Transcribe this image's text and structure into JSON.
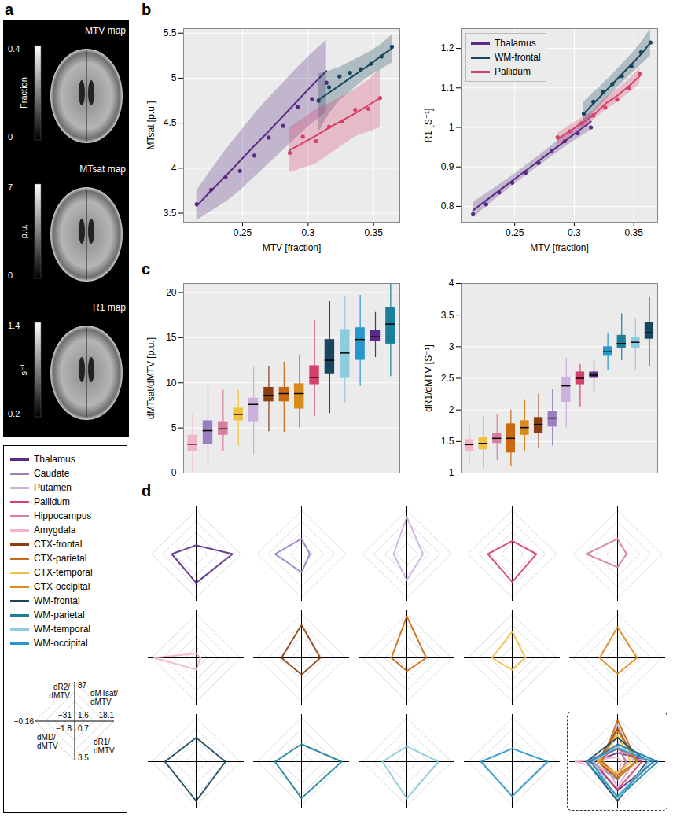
{
  "panel_letters": [
    "a",
    "b",
    "c",
    "d"
  ],
  "maps": [
    {
      "title": "MTV map",
      "unit": "Fraction",
      "min": 0,
      "max": 0.4
    },
    {
      "title": "MTsat map",
      "unit": "p.u.",
      "min": 0,
      "max": 7
    },
    {
      "title": "R1 map",
      "unit": "s⁻¹",
      "min": 0.2,
      "max": 1.4
    }
  ],
  "regions": [
    {
      "name": "Thalamus",
      "color": "#5b2a86"
    },
    {
      "name": "Caudate",
      "color": "#9a7fc0"
    },
    {
      "name": "Putamen",
      "color": "#cdb0dd"
    },
    {
      "name": "Pallidum",
      "color": "#d6416b"
    },
    {
      "name": "Hippocampus",
      "color": "#d77ea0"
    },
    {
      "name": "Amygdala",
      "color": "#f3b3c8"
    },
    {
      "name": "CTX-frontal",
      "color": "#8a3f12"
    },
    {
      "name": "CTX-parietal",
      "color": "#c96a12"
    },
    {
      "name": "CTX-temporal",
      "color": "#f2c040"
    },
    {
      "name": "CTX-occipital",
      "color": "#d98a1c"
    },
    {
      "name": "WM-frontal",
      "color": "#17475e"
    },
    {
      "name": "WM-parietal",
      "color": "#1b7f9c"
    },
    {
      "name": "WM-temporal",
      "color": "#8ccbe0"
    },
    {
      "name": "WM-occipital",
      "color": "#2896cc"
    }
  ],
  "chart_data": [
    {
      "type": "line",
      "xlabel": "MTV [fraction]",
      "ylabel": "MTsat [p.u.]",
      "xlim": [
        0.205,
        0.37
      ],
      "xticks": [
        0.25,
        0.3,
        0.35
      ],
      "ylim": [
        3.4,
        5.55
      ],
      "yticks": [
        3.5,
        4,
        4.5,
        5,
        5.5
      ],
      "grid": true,
      "series": [
        {
          "name": "Thalamus",
          "color": "#5b2a86",
          "marker": "circle",
          "x": [
            0.215,
            0.226,
            0.237,
            0.248,
            0.259,
            0.27,
            0.281,
            0.292,
            0.303,
            0.314
          ],
          "values": [
            3.6,
            3.76,
            3.9,
            3.97,
            4.14,
            4.34,
            4.47,
            4.68,
            4.77,
            4.95
          ],
          "fit": [
            3.58,
            3.75,
            3.91,
            4.08,
            4.25,
            4.41,
            4.58,
            4.75,
            4.92,
            5.08
          ],
          "lower": [
            3.42,
            3.52,
            3.62,
            3.75,
            3.9,
            4.05,
            4.2,
            4.35,
            4.5,
            4.62
          ],
          "upper": [
            3.75,
            3.98,
            4.2,
            4.4,
            4.6,
            4.78,
            4.95,
            5.12,
            5.28,
            5.42
          ]
        },
        {
          "name": "WM-frontal",
          "color": "#17475e",
          "marker": "circle",
          "x": [
            0.308,
            0.316,
            0.324,
            0.332,
            0.34,
            0.348,
            0.356,
            0.364
          ],
          "values": [
            4.75,
            4.9,
            5.02,
            5.06,
            5.1,
            5.16,
            5.24,
            5.35
          ],
          "fit": [
            4.76,
            4.84,
            4.92,
            5.0,
            5.08,
            5.16,
            5.25,
            5.33
          ],
          "lower": [
            4.4,
            4.6,
            4.75,
            4.85,
            4.95,
            5.03,
            5.1,
            5.17
          ],
          "upper": [
            5.05,
            5.08,
            5.12,
            5.18,
            5.24,
            5.3,
            5.38,
            5.48
          ]
        },
        {
          "name": "Pallidum",
          "color": "#d6416b",
          "marker": "circle",
          "x": [
            0.286,
            0.296,
            0.306,
            0.316,
            0.326,
            0.336,
            0.346,
            0.355
          ],
          "values": [
            4.17,
            4.35,
            4.3,
            4.46,
            4.52,
            4.65,
            4.66,
            4.78
          ],
          "fit": [
            4.2,
            4.28,
            4.36,
            4.45,
            4.53,
            4.61,
            4.7,
            4.78
          ],
          "lower": [
            3.95,
            4.0,
            4.05,
            4.15,
            4.25,
            4.35,
            4.4,
            4.45
          ],
          "upper": [
            4.45,
            4.55,
            4.65,
            4.72,
            4.8,
            4.88,
            4.98,
            5.1
          ]
        }
      ]
    },
    {
      "type": "line",
      "xlabel": "MTV [fraction]",
      "ylabel": "R1 [S⁻¹]",
      "xlim": [
        0.205,
        0.37
      ],
      "xticks": [
        0.25,
        0.3,
        0.35
      ],
      "ylim": [
        0.76,
        1.25
      ],
      "yticks": [
        0.8,
        0.9,
        1,
        1.1,
        1.2
      ],
      "grid": true,
      "legend": "top-left",
      "series": [
        {
          "name": "Thalamus",
          "color": "#5b2a86",
          "marker": "circle",
          "x": [
            0.215,
            0.226,
            0.237,
            0.248,
            0.259,
            0.27,
            0.281,
            0.292,
            0.303,
            0.314
          ],
          "values": [
            0.78,
            0.805,
            0.835,
            0.86,
            0.885,
            0.91,
            0.94,
            0.965,
            0.985,
            1.0
          ],
          "fit": [
            0.79,
            0.815,
            0.84,
            0.865,
            0.89,
            0.915,
            0.94,
            0.965,
            0.99,
            1.015
          ],
          "lower": [
            0.77,
            0.8,
            0.826,
            0.852,
            0.877,
            0.902,
            0.926,
            0.95,
            0.972,
            0.993
          ],
          "upper": [
            0.81,
            0.832,
            0.855,
            0.878,
            0.903,
            0.928,
            0.954,
            0.98,
            1.008,
            1.037
          ]
        },
        {
          "name": "WM-frontal",
          "color": "#17475e",
          "marker": "circle",
          "x": [
            0.308,
            0.316,
            0.324,
            0.332,
            0.34,
            0.348,
            0.356,
            0.364
          ],
          "values": [
            1.035,
            1.065,
            1.09,
            1.11,
            1.13,
            1.155,
            1.19,
            1.215
          ],
          "fit": [
            1.035,
            1.06,
            1.085,
            1.11,
            1.135,
            1.16,
            1.185,
            1.215
          ],
          "lower": [
            1.005,
            1.035,
            1.062,
            1.088,
            1.112,
            1.136,
            1.158,
            1.182
          ],
          "upper": [
            1.065,
            1.088,
            1.11,
            1.134,
            1.16,
            1.186,
            1.214,
            1.25
          ]
        },
        {
          "name": "Pallidum",
          "color": "#d6416b",
          "marker": "circle",
          "x": [
            0.286,
            0.296,
            0.306,
            0.316,
            0.326,
            0.336,
            0.346,
            0.355
          ],
          "values": [
            0.975,
            0.99,
            1.01,
            1.03,
            1.05,
            1.07,
            1.1,
            1.135
          ],
          "fit": [
            0.97,
            0.99,
            1.01,
            1.03,
            1.06,
            1.08,
            1.105,
            1.13
          ],
          "lower": [
            0.955,
            0.976,
            0.997,
            1.018,
            1.044,
            1.064,
            1.087,
            1.11
          ],
          "upper": [
            0.985,
            1.005,
            1.024,
            1.044,
            1.075,
            1.097,
            1.122,
            1.15
          ]
        }
      ]
    },
    {
      "type": "box",
      "ylabel": "dMTsat/dMTV [p.u.]",
      "ylim": [
        0,
        21
      ],
      "yticks": [
        0,
        5,
        10,
        15,
        20
      ],
      "grid": true,
      "tick_labels": "y",
      "categories": [
        "Amygdala",
        "Caudate",
        "Hippocampus",
        "CTX-temporal",
        "Putamen",
        "CTX-frontal",
        "CTX-parietal",
        "CTX-occipital",
        "Pallidum",
        "WM-frontal",
        "WM-temporal",
        "WM-occipital",
        "Thalamus",
        "WM-parietal"
      ],
      "colors": [
        "#f3b3c8",
        "#9a7fc0",
        "#d77ea0",
        "#f2c040",
        "#cdb0dd",
        "#8a3f12",
        "#c96a12",
        "#d98a1c",
        "#d6416b",
        "#17475e",
        "#8ccbe0",
        "#2896cc",
        "#5b2a86",
        "#1b7f9c"
      ],
      "boxes": [
        {
          "min": 0.1,
          "q1": 2.4,
          "median": 3.2,
          "q3": 4.2,
          "max": 6.6
        },
        {
          "min": 0.7,
          "q1": 3.2,
          "median": 4.7,
          "q3": 5.8,
          "max": 9.6
        },
        {
          "min": 2.4,
          "q1": 4.2,
          "median": 4.9,
          "q3": 5.7,
          "max": 9.2
        },
        {
          "min": 3.0,
          "q1": 5.8,
          "median": 6.5,
          "q3": 7.2,
          "max": 9.2
        },
        {
          "min": 2.0,
          "q1": 5.7,
          "median": 7.6,
          "q3": 8.3,
          "max": 11.7
        },
        {
          "min": 4.6,
          "q1": 7.9,
          "median": 8.6,
          "q3": 9.5,
          "max": 11.8
        },
        {
          "min": 4.5,
          "q1": 7.9,
          "median": 8.8,
          "q3": 9.5,
          "max": 12.3
        },
        {
          "min": 5.0,
          "q1": 7.1,
          "median": 8.8,
          "q3": 9.9,
          "max": 13.1
        },
        {
          "min": 6.3,
          "q1": 9.8,
          "median": 10.6,
          "q3": 11.9,
          "max": 16.9
        },
        {
          "min": 6.6,
          "q1": 11.0,
          "median": 12.5,
          "q3": 14.8,
          "max": 19.0
        },
        {
          "min": 7.8,
          "q1": 10.5,
          "median": 13.3,
          "q3": 15.9,
          "max": 19.5
        },
        {
          "min": 9.6,
          "q1": 12.5,
          "median": 14.8,
          "q3": 16.1,
          "max": 19.7
        },
        {
          "min": 12.8,
          "q1": 14.6,
          "median": 15.1,
          "q3": 15.8,
          "max": 17.8
        },
        {
          "min": 10.7,
          "q1": 14.3,
          "median": 16.5,
          "q3": 18.3,
          "max": 21.0
        }
      ]
    },
    {
      "type": "box",
      "ylabel": "dR1/dMTV [S⁻¹]",
      "ylim": [
        1,
        4
      ],
      "yticks": [
        1,
        1.5,
        2,
        2.5,
        3,
        3.5,
        4
      ],
      "grid": true,
      "tick_labels": "y",
      "categories": [
        "Amygdala",
        "CTX-temporal",
        "Hippocampus",
        "CTX-parietal",
        "CTX-occipital",
        "CTX-frontal",
        "Caudate",
        "Putamen",
        "Pallidum",
        "Thalamus",
        "WM-occipital",
        "WM-parietal",
        "WM-temporal",
        "WM-frontal"
      ],
      "colors": [
        "#f3b3c8",
        "#f2c040",
        "#d77ea0",
        "#c96a12",
        "#d98a1c",
        "#8a3f12",
        "#9a7fc0",
        "#cdb0dd",
        "#d6416b",
        "#5b2a86",
        "#2896cc",
        "#1b7f9c",
        "#8ccbe0",
        "#17475e"
      ],
      "boxes": [
        {
          "min": 1.12,
          "q1": 1.35,
          "median": 1.45,
          "q3": 1.53,
          "max": 1.78
        },
        {
          "min": 1.07,
          "q1": 1.37,
          "median": 1.47,
          "q3": 1.56,
          "max": 1.9
        },
        {
          "min": 1.2,
          "q1": 1.47,
          "median": 1.55,
          "q3": 1.63,
          "max": 1.92
        },
        {
          "min": 1.1,
          "q1": 1.32,
          "median": 1.55,
          "q3": 1.78,
          "max": 2.0
        },
        {
          "min": 1.35,
          "q1": 1.6,
          "median": 1.72,
          "q3": 1.83,
          "max": 2.15
        },
        {
          "min": 1.38,
          "q1": 1.63,
          "median": 1.77,
          "q3": 1.88,
          "max": 2.25
        },
        {
          "min": 1.43,
          "q1": 1.73,
          "median": 1.87,
          "q3": 1.98,
          "max": 2.32
        },
        {
          "min": 1.72,
          "q1": 2.12,
          "median": 2.38,
          "q3": 2.52,
          "max": 2.82
        },
        {
          "min": 2.05,
          "q1": 2.4,
          "median": 2.5,
          "q3": 2.6,
          "max": 2.72
        },
        {
          "min": 2.28,
          "q1": 2.5,
          "median": 2.55,
          "q3": 2.6,
          "max": 2.78
        },
        {
          "min": 2.62,
          "q1": 2.85,
          "median": 2.92,
          "q3": 3.0,
          "max": 3.22
        },
        {
          "min": 2.78,
          "q1": 2.98,
          "median": 3.05,
          "q3": 3.18,
          "max": 3.52
        },
        {
          "min": 2.62,
          "q1": 2.98,
          "median": 3.07,
          "q3": 3.14,
          "max": 3.45
        },
        {
          "min": 2.68,
          "q1": 3.12,
          "median": 3.22,
          "q3": 3.38,
          "max": 3.78
        }
      ]
    }
  ],
  "radar": {
    "axes": [
      {
        "label": "dR2/dMTV",
        "min": -31,
        "max": 87
      },
      {
        "label": "dMTsat/dMTV",
        "min": 1.6,
        "max": 18.1
      },
      {
        "label": "dR1/dMTV",
        "min": 0.7,
        "max": 3.5
      },
      {
        "label": "dMD/dMTV",
        "min": -1.8,
        "max": -0.16
      }
    ],
    "regions": [
      {
        "name": "Thalamus",
        "values": [
          -7.4,
          15.1,
          2.55,
          -0.9
        ]
      },
      {
        "name": "Caudate",
        "values": [
          10.3,
          4.7,
          1.87,
          -0.82
        ]
      },
      {
        "name": "Putamen",
        "values": [
          69.3,
          7.6,
          2.38,
          -1.31
        ]
      },
      {
        "name": "Pallidum",
        "values": [
          4.4,
          10.6,
          2.5,
          -0.9
        ]
      },
      {
        "name": "Hippocampus",
        "values": [
          10.3,
          4.9,
          1.55,
          -0.65
        ]
      },
      {
        "name": "Amygdala",
        "values": [
          -19.2,
          3.2,
          1.45,
          -0.24
        ]
      },
      {
        "name": "CTX-frontal",
        "values": [
          57.5,
          8.6,
          1.77,
          -1.06
        ]
      },
      {
        "name": "CTX-parietal",
        "values": [
          81.1,
          8.8,
          1.55,
          -1.23
        ]
      },
      {
        "name": "CTX-temporal",
        "values": [
          39.8,
          6.5,
          1.47,
          -1.06
        ]
      },
      {
        "name": "CTX-occipital",
        "values": [
          51.6,
          8.8,
          1.72,
          -1.14
        ]
      },
      {
        "name": "WM-frontal",
        "values": [
          33.9,
          12.5,
          3.22,
          -0.65
        ]
      },
      {
        "name": "WM-parietal",
        "values": [
          16.2,
          16.5,
          3.05,
          -0.82
        ]
      },
      {
        "name": "WM-temporal",
        "values": [
          10.3,
          13.3,
          3.07,
          -0.9
        ]
      },
      {
        "name": "WM-occipital",
        "values": [
          4.4,
          14.8,
          2.92,
          -0.65
        ]
      }
    ]
  }
}
